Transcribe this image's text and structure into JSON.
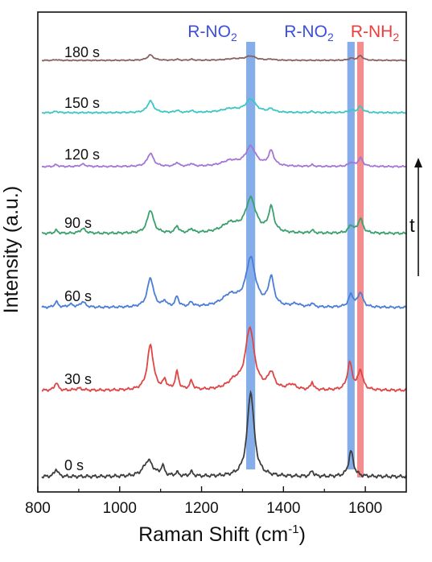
{
  "chart_data": {
    "type": "line",
    "title": "",
    "xlabel_main": "Raman Shift (cm",
    "xlabel_sup": "-1",
    "xlabel_close": ")",
    "ylabel": "Intensity (a.u.)",
    "xlim": [
      800,
      1700
    ],
    "xticks": [
      800,
      1000,
      1200,
      1400,
      1600
    ],
    "y_ticks_shown": false,
    "grid": false,
    "bands": [
      {
        "center": 1320,
        "width": 22,
        "label_main": "R-NO",
        "label_sub": "2",
        "color": "#6f9fe6"
      },
      {
        "center": 1565,
        "width": 18,
        "label_main": "R-NO",
        "label_sub": "2",
        "color": "#6f9fe6"
      },
      {
        "center": 1588,
        "width": 16,
        "label_main": "R-NH",
        "label_sub": "2",
        "color": "#f27979"
      }
    ],
    "arrow_label": "t",
    "series": [
      {
        "name": "0 s",
        "color": "#3d3d3d",
        "offset": 0,
        "peaks": [
          [
            845,
            0.09,
            5
          ],
          [
            1070,
            0.19,
            14
          ],
          [
            1105,
            0.11,
            5
          ],
          [
            1140,
            0.04,
            5
          ],
          [
            1175,
            0.05,
            5
          ],
          [
            1320,
            1.0,
            10
          ],
          [
            1470,
            0.07,
            4
          ],
          [
            1565,
            0.3,
            7
          ]
        ]
      },
      {
        "name": "30 s",
        "color": "#e04545",
        "offset": 1,
        "peaks": [
          [
            845,
            0.12,
            5
          ],
          [
            900,
            0.03,
            10
          ],
          [
            1075,
            0.7,
            9
          ],
          [
            1110,
            0.14,
            5
          ],
          [
            1140,
            0.27,
            5
          ],
          [
            1175,
            0.13,
            5
          ],
          [
            1280,
            0.12,
            20
          ],
          [
            1318,
            0.95,
            13
          ],
          [
            1370,
            0.25,
            9
          ],
          [
            1420,
            0.08,
            12
          ],
          [
            1470,
            0.12,
            4
          ],
          [
            1562,
            0.42,
            7
          ],
          [
            1588,
            0.3,
            7
          ]
        ]
      },
      {
        "name": "60 s",
        "color": "#4a7ed6",
        "offset": 2,
        "peaks": [
          [
            845,
            0.1,
            5
          ],
          [
            880,
            0.05,
            8
          ],
          [
            910,
            0.1,
            7
          ],
          [
            1075,
            0.52,
            9
          ],
          [
            1110,
            0.1,
            5
          ],
          [
            1140,
            0.18,
            5
          ],
          [
            1175,
            0.08,
            5
          ],
          [
            1270,
            0.2,
            25
          ],
          [
            1320,
            0.85,
            14
          ],
          [
            1370,
            0.5,
            8
          ],
          [
            1430,
            0.05,
            12
          ],
          [
            1470,
            0.07,
            4
          ],
          [
            1565,
            0.22,
            7
          ],
          [
            1588,
            0.26,
            7
          ]
        ]
      },
      {
        "name": "90 s",
        "color": "#3aa06c",
        "offset": 3,
        "peaks": [
          [
            845,
            0.05,
            5
          ],
          [
            910,
            0.08,
            8
          ],
          [
            1075,
            0.4,
            9
          ],
          [
            1140,
            0.12,
            5
          ],
          [
            1175,
            0.07,
            5
          ],
          [
            1270,
            0.16,
            25
          ],
          [
            1320,
            0.58,
            15
          ],
          [
            1370,
            0.42,
            8
          ],
          [
            1470,
            0.05,
            4
          ],
          [
            1565,
            0.13,
            7
          ],
          [
            1588,
            0.25,
            7
          ]
        ]
      },
      {
        "name": "120 s",
        "color": "#a575d6",
        "offset": 4,
        "peaks": [
          [
            845,
            0.05,
            5
          ],
          [
            910,
            0.06,
            8
          ],
          [
            1075,
            0.34,
            9
          ],
          [
            1140,
            0.1,
            5
          ],
          [
            1175,
            0.07,
            5
          ],
          [
            1270,
            0.14,
            25
          ],
          [
            1320,
            0.5,
            15
          ],
          [
            1370,
            0.38,
            8
          ],
          [
            1470,
            0.04,
            4
          ],
          [
            1565,
            0.1,
            7
          ],
          [
            1588,
            0.22,
            7
          ]
        ]
      },
      {
        "name": "150 s",
        "color": "#3cc6c6",
        "offset": 5,
        "peaks": [
          [
            845,
            0.04,
            5
          ],
          [
            1075,
            0.32,
            9
          ],
          [
            1140,
            0.06,
            5
          ],
          [
            1175,
            0.05,
            5
          ],
          [
            1270,
            0.1,
            25
          ],
          [
            1320,
            0.36,
            15
          ],
          [
            1370,
            0.09,
            8
          ],
          [
            1470,
            0.03,
            4
          ],
          [
            1565,
            0.07,
            7
          ],
          [
            1588,
            0.17,
            7
          ]
        ]
      },
      {
        "name": "180 s",
        "color": "#8b6060",
        "offset": 6,
        "peaks": [
          [
            845,
            0.03,
            5
          ],
          [
            1075,
            0.22,
            9
          ],
          [
            1140,
            0.04,
            5
          ],
          [
            1175,
            0.04,
            5
          ],
          [
            1280,
            0.06,
            25
          ],
          [
            1320,
            0.17,
            15
          ],
          [
            1370,
            0.04,
            8
          ],
          [
            1565,
            0.08,
            7
          ],
          [
            1588,
            0.19,
            7
          ]
        ]
      }
    ]
  }
}
